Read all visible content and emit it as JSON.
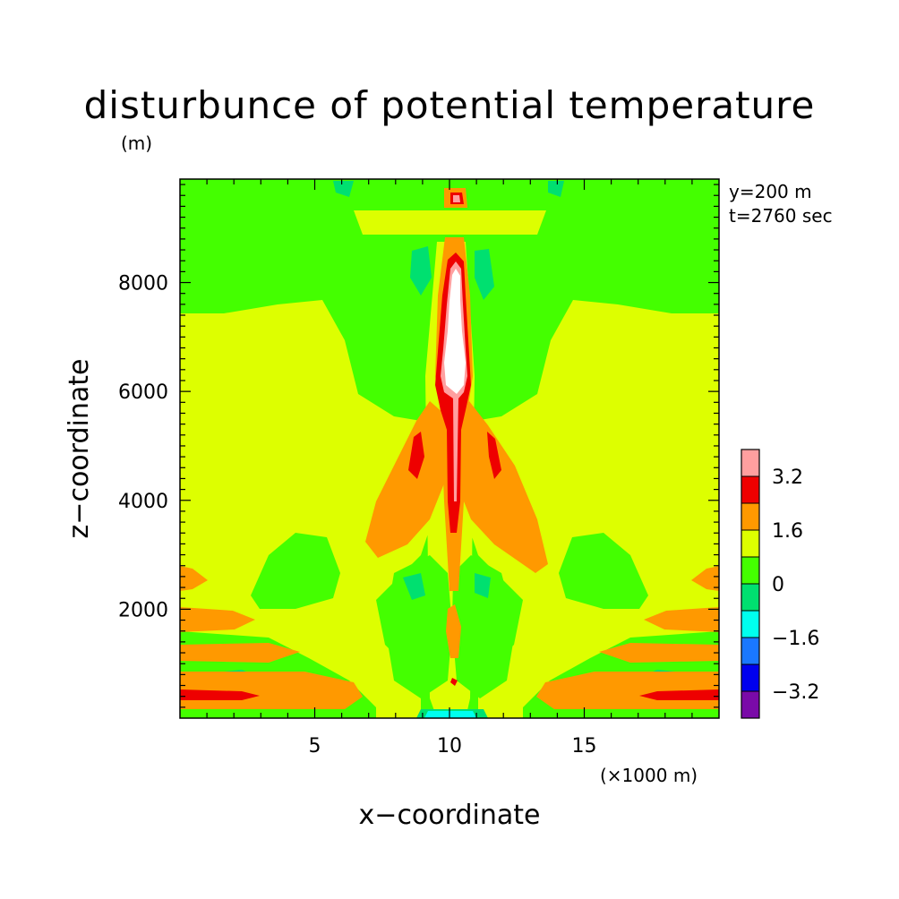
{
  "chart_data": {
    "type": "heatmap",
    "title": "disturbunce of potential temperature",
    "xlabel": "x−coordinate",
    "ylabel": "z−coordinate",
    "yunit": "(m)",
    "xunit": "(×1000 m)",
    "annotations": [
      "y=200 m",
      "t=2760 sec"
    ],
    "xlim": [
      0,
      20
    ],
    "ylim": [
      0,
      9900
    ],
    "xticks": [
      {
        "value": 5,
        "label": "5"
      },
      {
        "value": 10,
        "label": "10"
      },
      {
        "value": 15,
        "label": "15"
      }
    ],
    "yticks": [
      {
        "value": 2000,
        "label": "2000"
      },
      {
        "value": 4000,
        "label": "4000"
      },
      {
        "value": 6000,
        "label": "6000"
      },
      {
        "value": 8000,
        "label": "8000"
      }
    ],
    "colorbar": {
      "levels": [
        -4.0,
        -3.2,
        -2.4,
        -1.6,
        -0.8,
        0,
        0.8,
        1.6,
        2.4,
        3.2,
        4.0
      ],
      "colors": [
        "#7a0aa8",
        "#0000ee",
        "#1a78ff",
        "#00ffee",
        "#00e070",
        "#44ff00",
        "#ddff00",
        "#ff9900",
        "#ee0000",
        "#ff9f9f"
      ],
      "labels": [
        {
          "value": -3.2,
          "label": "−3.2"
        },
        {
          "value": -1.6,
          "label": "−1.6"
        },
        {
          "value": 0,
          "label": "0"
        },
        {
          "value": 1.6,
          "label": "1.6"
        },
        {
          "value": 3.2,
          "label": "3.2"
        }
      ]
    },
    "grid": false
  }
}
